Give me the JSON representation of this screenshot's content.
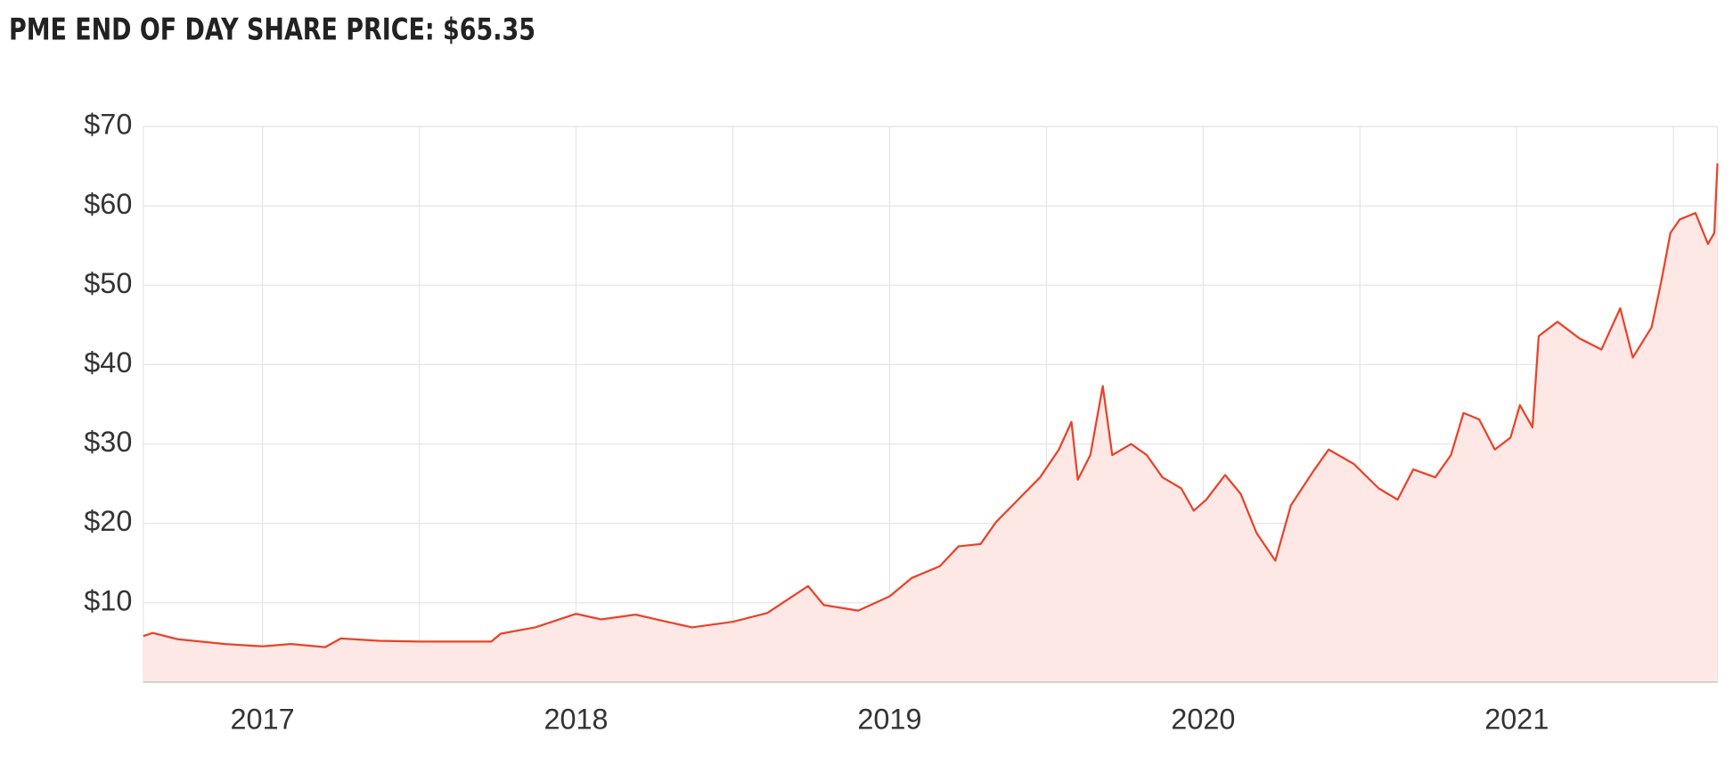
{
  "chart_data": {
    "type": "line",
    "title": "PME END OF DAY SHARE PRICE: $65.35",
    "x": [
      2016.62,
      2016.65,
      2016.73,
      2016.88,
      2017.0,
      2017.09,
      2017.2,
      2017.25,
      2017.37,
      2017.5,
      2017.59,
      2017.73,
      2017.76,
      2017.87,
      2018.0,
      2018.08,
      2018.19,
      2018.29,
      2018.37,
      2018.5,
      2018.61,
      2018.74,
      2018.79,
      2018.9,
      2019.0,
      2019.07,
      2019.16,
      2019.22,
      2019.29,
      2019.34,
      2019.41,
      2019.48,
      2019.54,
      2019.58,
      2019.6,
      2019.64,
      2019.68,
      2019.71,
      2019.77,
      2019.82,
      2019.87,
      2019.93,
      2019.97,
      2020.01,
      2020.07,
      2020.12,
      2020.17,
      2020.23,
      2020.28,
      2020.35,
      2020.4,
      2020.48,
      2020.56,
      2020.62,
      2020.67,
      2020.74,
      2020.79,
      2020.83,
      2020.88,
      2020.93,
      2020.98,
      2021.01,
      2021.05,
      2021.07,
      2021.13,
      2021.2,
      2021.27,
      2021.33,
      2021.37,
      2021.43,
      2021.46,
      2021.49,
      2021.52,
      2021.57,
      2021.61,
      2021.63,
      2021.64
    ],
    "values": [
      5.8,
      6.2,
      5.4,
      4.8,
      4.5,
      4.8,
      4.4,
      5.5,
      5.2,
      5.1,
      5.1,
      5.1,
      6.1,
      6.9,
      8.6,
      7.9,
      8.5,
      7.6,
      6.9,
      7.6,
      8.7,
      12.1,
      9.7,
      9.0,
      10.8,
      13.1,
      14.6,
      17.1,
      17.4,
      20.2,
      23.0,
      25.8,
      29.3,
      32.8,
      25.5,
      28.6,
      37.3,
      28.6,
      30.0,
      28.6,
      25.8,
      24.4,
      21.6,
      23.0,
      26.1,
      23.7,
      18.8,
      15.3,
      22.3,
      26.5,
      29.3,
      27.5,
      24.4,
      23.0,
      26.8,
      25.8,
      28.6,
      33.9,
      33.1,
      29.3,
      30.8,
      34.9,
      32.1,
      43.6,
      45.4,
      43.3,
      41.9,
      47.1,
      40.9,
      44.7,
      50.3,
      56.6,
      58.3,
      59.1,
      55.2,
      56.6,
      65.35
    ],
    "color": "#e8432a",
    "fill": "#fde8e6",
    "xlim": [
      2016.62,
      2021.64
    ],
    "xticks": [
      2017,
      2018,
      2019,
      2020,
      2021
    ],
    "ylim": [
      0,
      70
    ],
    "yticks": [
      {
        "value": 10,
        "label": "$10"
      },
      {
        "value": 20,
        "label": "$20"
      },
      {
        "value": 30,
        "label": "$30"
      },
      {
        "value": 40,
        "label": "$40"
      },
      {
        "value": 50,
        "label": "$50"
      },
      {
        "value": 60,
        "label": "$60"
      },
      {
        "value": 70,
        "label": "$70"
      }
    ],
    "grid": true
  }
}
